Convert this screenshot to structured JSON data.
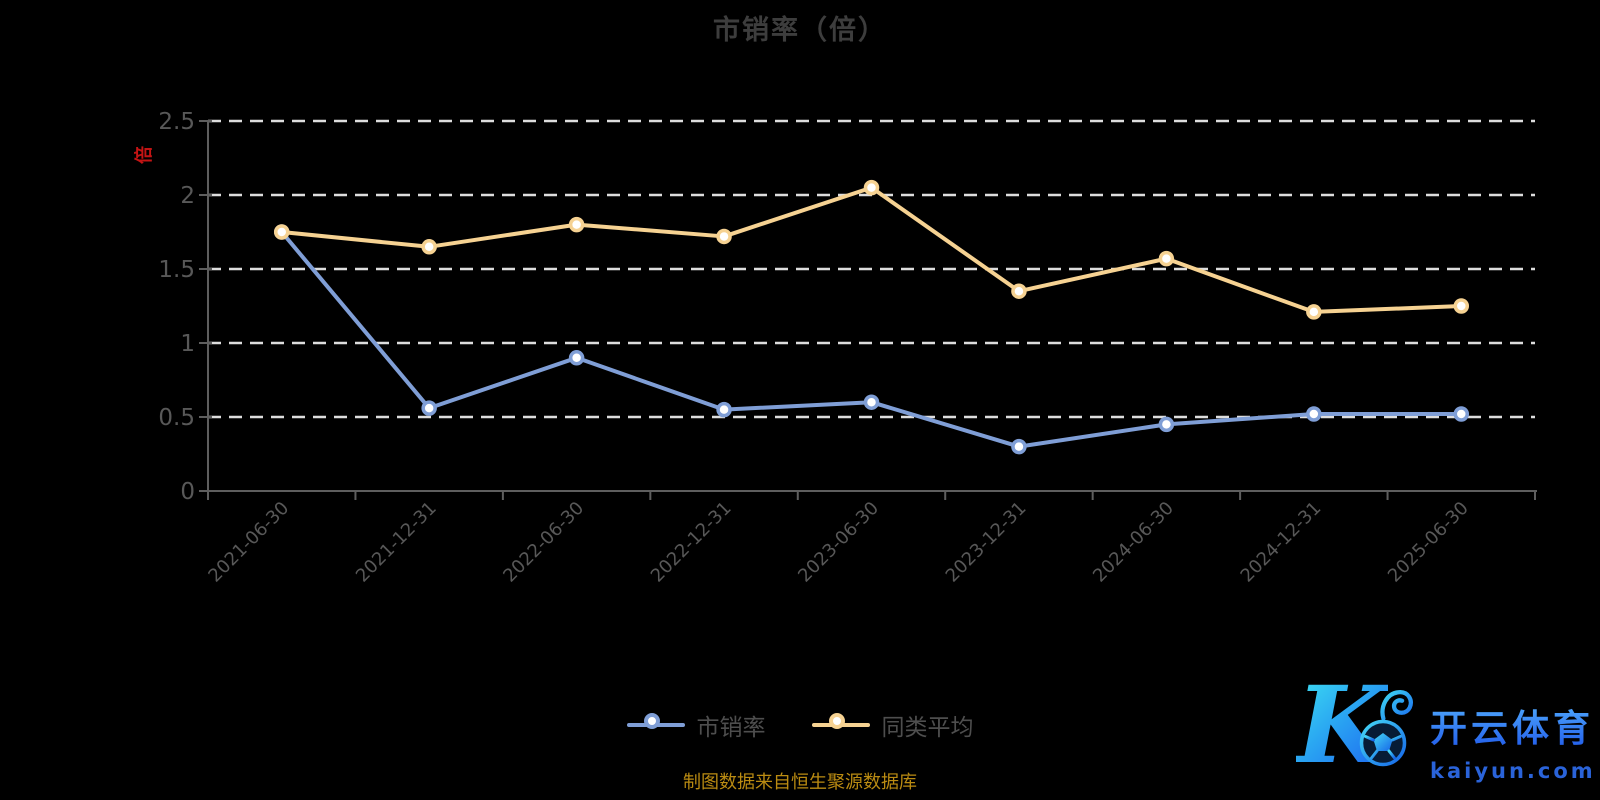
{
  "title": "市销率（倍）",
  "y_axis_name": "倍",
  "source_note": "制图数据来自恒生聚源数据库",
  "watermark": {
    "letter": "K",
    "brand": "开云体育",
    "domain": "kaiyun.com"
  },
  "chart_data": {
    "type": "line",
    "title": "市销率（倍）",
    "categories": [
      "2021-06-30",
      "2021-12-31",
      "2022-06-30",
      "2022-12-31",
      "2023-06-30",
      "2023-12-31",
      "2024-06-30",
      "2024-12-31",
      "2025-06-30"
    ],
    "series": [
      {
        "name": "市销率",
        "color": "#7f9ed6",
        "values": [
          1.75,
          0.56,
          0.9,
          0.55,
          0.6,
          0.3,
          0.45,
          0.52,
          0.52
        ]
      },
      {
        "name": "同类平均",
        "color": "#f6d292",
        "values": [
          1.75,
          1.65,
          1.8,
          1.72,
          2.05,
          1.35,
          1.57,
          1.21,
          1.25
        ]
      }
    ],
    "ylabel": "倍",
    "ylim": [
      0,
      2.5
    ],
    "y_ticks": [
      0,
      0.5,
      1,
      1.5,
      2,
      2.5
    ],
    "grid": "horizontal dashed white lines",
    "legend_position": "bottom-center",
    "x_label_rotation": -45
  },
  "colors": {
    "background": "#000000",
    "title": "#3d3d3d",
    "axis_line": "#5e5e5e",
    "axis_label": "#585858",
    "grid_line": "#dddddd",
    "legend_label": "#4e4e4e",
    "y_name": "#c41414",
    "source_note": "#ba8b12",
    "marker_fill": "#ffffff"
  }
}
